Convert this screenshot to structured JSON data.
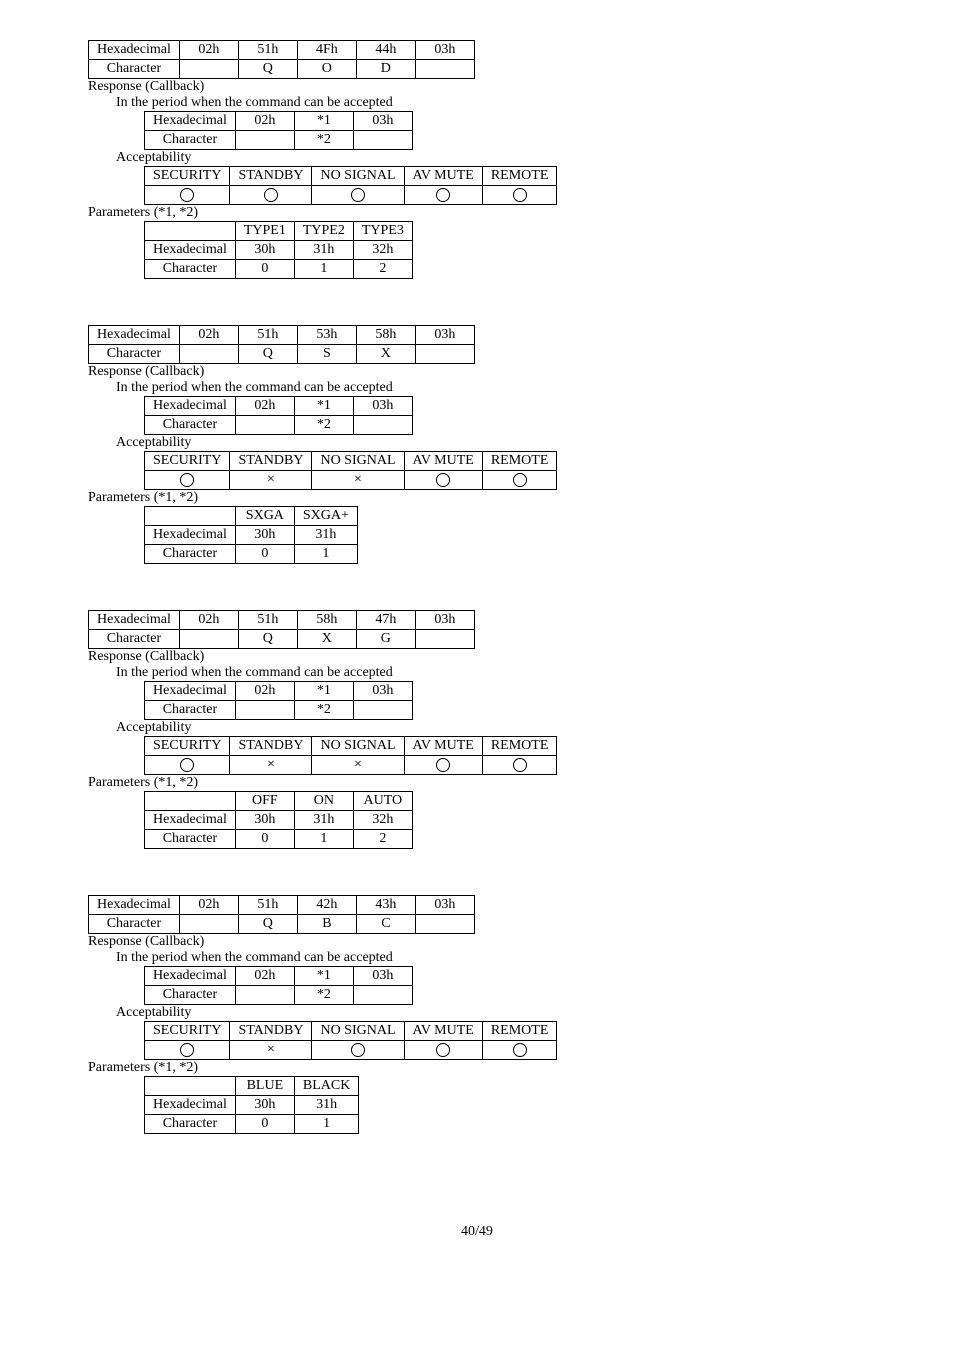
{
  "cross": "×",
  "circle": "○",
  "strings": {
    "resp": "Response (Callback)",
    "period": "In the period when the command can be accepted",
    "accept": "Acceptability",
    "paramsHex": "Hexadecimal",
    "paramsChar": "Character",
    "secHdr": [
      "SECURITY",
      "STANDBY",
      "NO SIGNAL",
      "AV MUTE",
      "REMOTE"
    ]
  },
  "footer": "40/49",
  "blocks": [
    {
      "cmd": {
        "hex": [
          "02h",
          "51h",
          "4Fh",
          "44h",
          "03h"
        ],
        "chr": [
          "",
          "Q",
          "O",
          "D",
          ""
        ]
      },
      "cb": {
        "hex": [
          "02h",
          "*1",
          "03h"
        ],
        "chr": [
          "",
          "*2",
          ""
        ]
      },
      "acc": [
        "○",
        "○",
        "○",
        "○",
        "○"
      ],
      "paramHdr": [
        "",
        "TYPE1",
        "TYPE2",
        "TYPE3"
      ],
      "paramHex": [
        "Hexadecimal",
        "30h",
        "31h",
        "32h"
      ],
      "paramChr": [
        "Character",
        "0",
        "1",
        "2"
      ],
      "paramLabel": "Parameters (*1, *2)"
    },
    {
      "cmd": {
        "hex": [
          "02h",
          "51h",
          "53h",
          "58h",
          "03h"
        ],
        "chr": [
          "",
          "Q",
          "S",
          "X",
          ""
        ]
      },
      "cb": {
        "hex": [
          "02h",
          "*1",
          "03h"
        ],
        "chr": [
          "",
          "*2",
          ""
        ]
      },
      "acc": [
        "○",
        "×",
        "×",
        "○",
        "○"
      ],
      "paramHdr": [
        "",
        "SXGA",
        "SXGA+"
      ],
      "paramHex": [
        "Hexadecimal",
        "30h",
        "31h"
      ],
      "paramChr": [
        "Character",
        "0",
        "1"
      ],
      "paramLabel": "Parameters (*1, *2)"
    },
    {
      "cmd": {
        "hex": [
          "02h",
          "51h",
          "58h",
          "47h",
          "03h"
        ],
        "chr": [
          "",
          "Q",
          "X",
          "G",
          ""
        ]
      },
      "cb": {
        "hex": [
          "02h",
          "*1",
          "03h"
        ],
        "chr": [
          "",
          "*2",
          ""
        ]
      },
      "acc": [
        "○",
        "×",
        "×",
        "○",
        "○"
      ],
      "paramHdr": [
        "",
        "OFF",
        "ON",
        "AUTO"
      ],
      "paramHex": [
        "Hexadecimal",
        "30h",
        "31h",
        "32h"
      ],
      "paramChr": [
        "Character",
        "0",
        "1",
        "2"
      ],
      "paramLabel": "Parameters (*1, *2)"
    },
    {
      "cmd": {
        "hex": [
          "02h",
          "51h",
          "42h",
          "43h",
          "03h"
        ],
        "chr": [
          "",
          "Q",
          "B",
          "C",
          ""
        ]
      },
      "cb": {
        "hex": [
          "02h",
          "*1",
          "03h"
        ],
        "chr": [
          "",
          "*2",
          ""
        ]
      },
      "acc": [
        "○",
        "×",
        "○",
        "○",
        "○"
      ],
      "paramHdr": [
        "",
        "BLUE",
        "BLACK"
      ],
      "paramHex": [
        "Hexadecimal",
        "30h",
        "31h"
      ],
      "paramChr": [
        "Character",
        "0",
        "1"
      ],
      "paramLabel": "Parameters (*1, *2)"
    }
  ]
}
